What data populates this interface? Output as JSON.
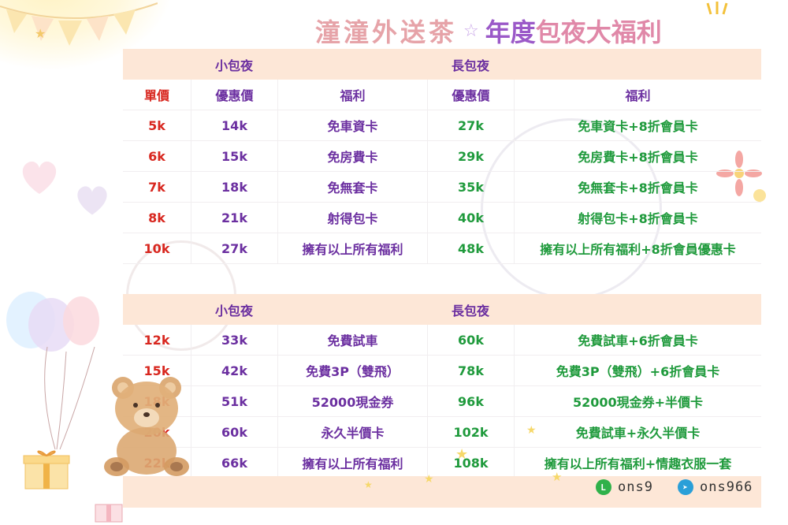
{
  "title": {
    "shop_name": "潼潼外送茶",
    "part1": "年度",
    "part2": "包夜大福利"
  },
  "table1": {
    "header": {
      "short_night": "小包夜",
      "long_night": "長包夜"
    },
    "columns": [
      "單價",
      "優惠價",
      "福利",
      "優惠價",
      "福利"
    ],
    "rows": [
      {
        "price": "5k",
        "short_price": "14k",
        "short_benefit": "免車資卡",
        "long_price": "27k",
        "long_benefit": "免車資卡+8折會員卡"
      },
      {
        "price": "6k",
        "short_price": "15k",
        "short_benefit": "免房費卡",
        "long_price": "29k",
        "long_benefit": "免房費卡+8折會員卡"
      },
      {
        "price": "7k",
        "short_price": "18k",
        "short_benefit": "免無套卡",
        "long_price": "35k",
        "long_benefit": "免無套卡+8折會員卡"
      },
      {
        "price": "8k",
        "short_price": "21k",
        "short_benefit": "射得包卡",
        "long_price": "40k",
        "long_benefit": "射得包卡+8折會員卡"
      },
      {
        "price": "10k",
        "short_price": "27k",
        "short_benefit": "擁有以上所有福利",
        "long_price": "48k",
        "long_benefit": "擁有以上所有福利+8折會員優惠卡"
      }
    ]
  },
  "table2": {
    "header": {
      "short_night": "小包夜",
      "long_night": "長包夜"
    },
    "rows": [
      {
        "price": "12k",
        "short_price": "33k",
        "short_benefit": "免費試車",
        "long_price": "60k",
        "long_benefit": "免費試車+6折會員卡"
      },
      {
        "price": "15k",
        "short_price": "42k",
        "short_benefit": "免費3P（雙飛）",
        "long_price": "78k",
        "long_benefit": "免費3P（雙飛）+6折會員卡"
      },
      {
        "price": "18k",
        "short_price": "51k",
        "short_benefit": "52000現金券",
        "long_price": "96k",
        "long_benefit": "52000現金券+半價卡"
      },
      {
        "price": "20k",
        "short_price": "60k",
        "short_benefit": "永久半價卡",
        "long_price": "102k",
        "long_benefit": "免費試車+永久半價卡"
      },
      {
        "price": "22k",
        "short_price": "66k",
        "short_benefit": "擁有以上所有福利",
        "long_price": "108k",
        "long_benefit": "擁有以上所有福利+情趣衣服一套"
      }
    ]
  },
  "contacts": {
    "line_id": "ons9",
    "telegram_id": "ons966",
    "line_icon": "line-icon",
    "telegram_icon": "telegram-icon"
  },
  "colors": {
    "header_band": "#fde7d7",
    "price_red": "#d8271f",
    "short_purple": "#6b2fa0",
    "long_green": "#1f9a3c"
  }
}
